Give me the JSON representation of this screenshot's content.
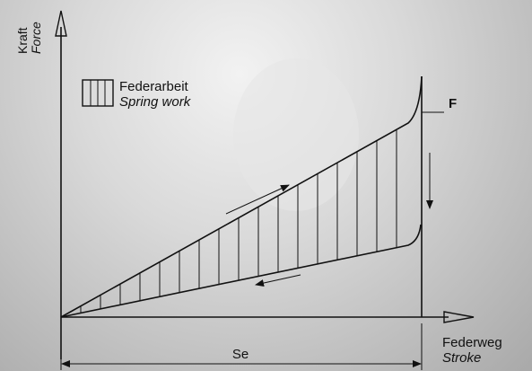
{
  "axis_y": {
    "label": "Kraft",
    "sublabel": "Force"
  },
  "axis_x": {
    "label": "Federweg",
    "sublabel": "Stroke"
  },
  "legend": {
    "label": "Federarbeit",
    "sublabel": "Spring work"
  },
  "force_label": "F",
  "stroke_label": "Se"
}
